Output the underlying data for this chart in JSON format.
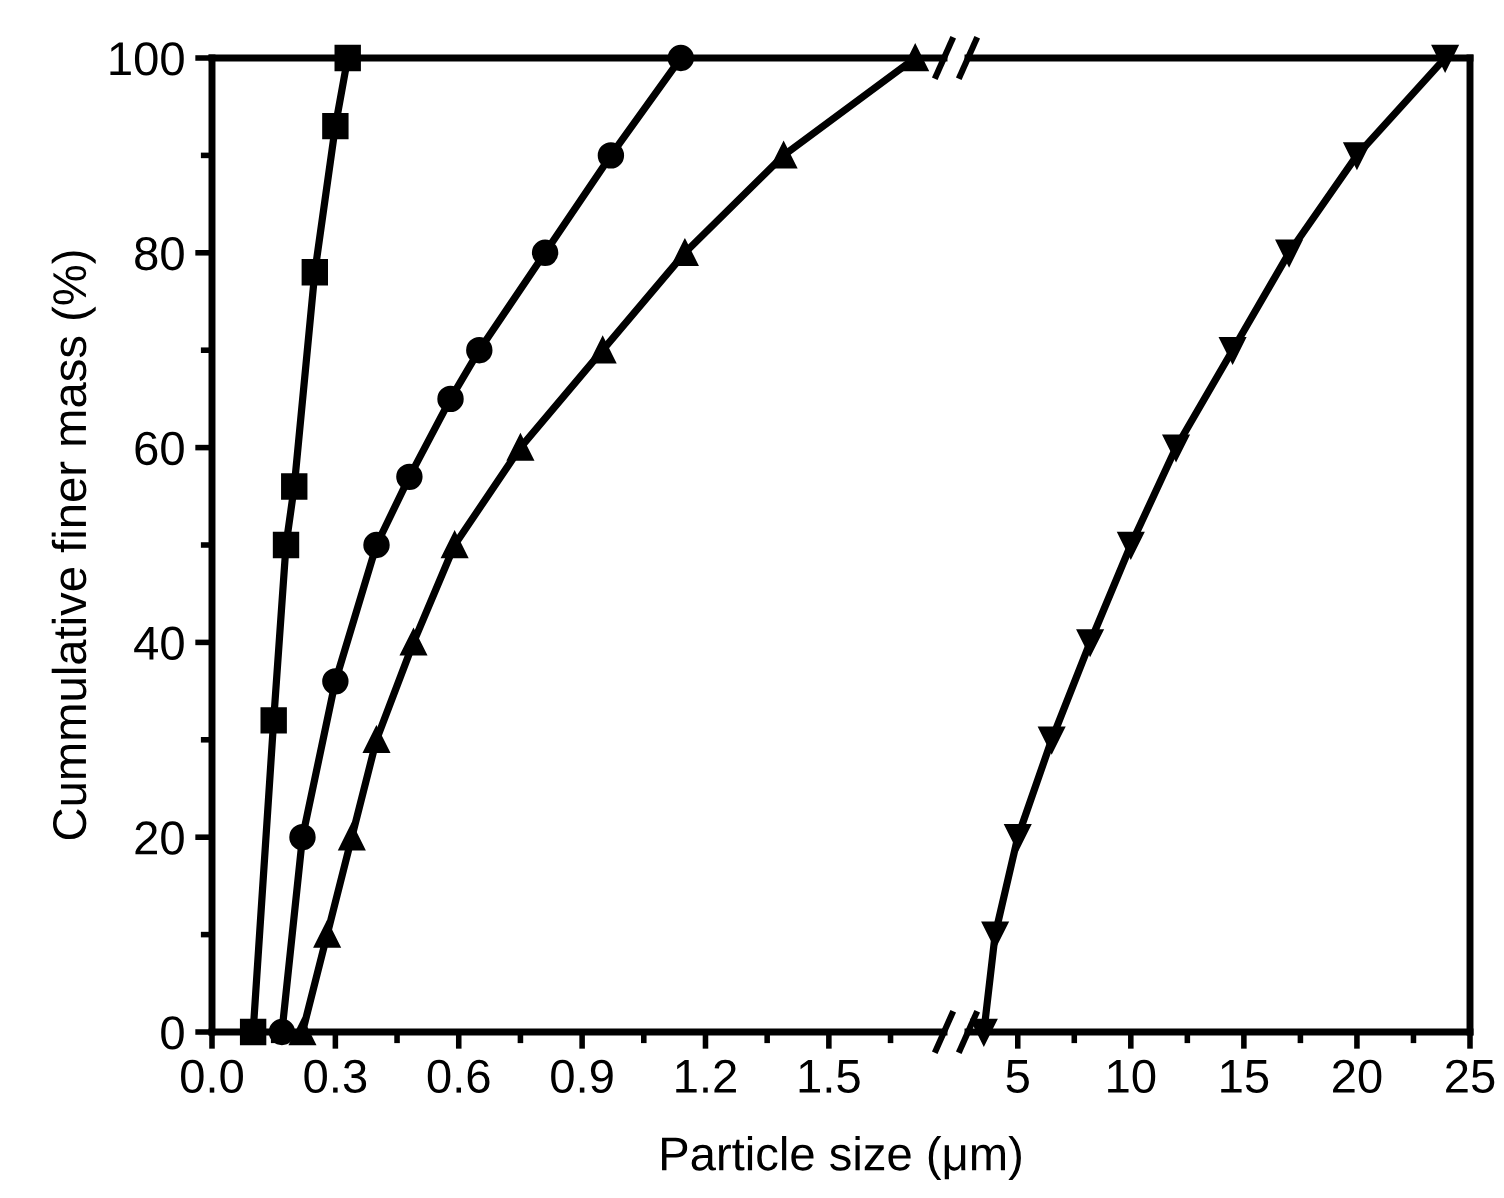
{
  "chart_data": [
    {
      "type": "line",
      "ylabel": "Cummulative finer mass (%)",
      "xlabel": "Particle size (μm)",
      "xlim": [
        0,
        1.78
      ],
      "xticks": [
        {
          "value": 0,
          "label": "0.0"
        },
        0.3,
        0.6,
        0.9,
        1.2,
        1.5
      ],
      "ylim": [
        0,
        100
      ],
      "yticks": [
        0,
        20,
        40,
        60,
        80,
        100
      ],
      "grid": false,
      "legend": false,
      "line_style": "solid",
      "series": [
        {
          "color": "#000000",
          "marker": "square",
          "x": [
            0.1,
            0.15,
            0.18,
            0.2,
            0.25,
            0.3,
            0.33
          ],
          "values": [
            0,
            32,
            50,
            56,
            78,
            93,
            100
          ]
        },
        {
          "color": "#000000",
          "marker": "circle",
          "x": [
            0.17,
            0.22,
            0.3,
            0.4,
            0.48,
            0.58,
            0.65,
            0.81,
            0.97,
            1.14
          ],
          "values": [
            0,
            20,
            36,
            50,
            57,
            65,
            70,
            80,
            90,
            100
          ]
        },
        {
          "color": "#000000",
          "marker": "triangle",
          "x": [
            0.22,
            0.28,
            0.34,
            0.4,
            0.49,
            0.59,
            0.75,
            0.95,
            1.15,
            1.39,
            1.71
          ],
          "values": [
            0,
            10,
            20,
            30,
            40,
            50,
            60,
            70,
            80,
            90,
            100
          ]
        }
      ]
    },
    {
      "type": "line",
      "xlim": [
        2.8,
        25
      ],
      "xticks": [
        5,
        10,
        15,
        20,
        25
      ],
      "ylim": [
        0,
        100
      ],
      "tick_labels": "x",
      "grid": false,
      "legend": false,
      "line_style": "solid",
      "series": [
        {
          "color": "#000000",
          "marker": "triangle_down",
          "x": [
            3.5,
            4.0,
            5.0,
            6.5,
            8.2,
            10.0,
            12.0,
            14.5,
            17.0,
            20.0,
            23.9
          ],
          "values": [
            0,
            10,
            20,
            30,
            40,
            50,
            60,
            70,
            80,
            90,
            100
          ]
        }
      ]
    }
  ]
}
